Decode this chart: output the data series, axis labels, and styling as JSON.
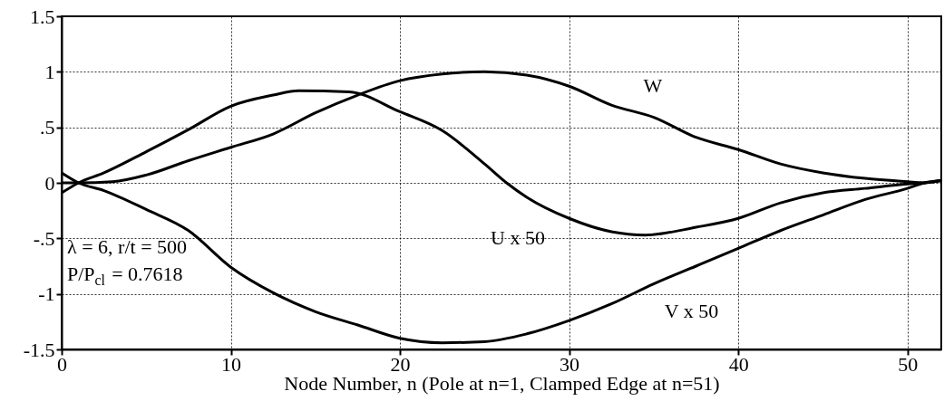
{
  "chart_data": {
    "type": "line",
    "xlabel": "Node Number, n  (Pole at n=1, Clamped Edge at n=51)",
    "xlim": [
      0,
      52
    ],
    "xticks": [
      0,
      10,
      20,
      30,
      40,
      50
    ],
    "ylim": [
      -1.5,
      1.5
    ],
    "yticks": [
      {
        "value": 1.5,
        "label": "1.5"
      },
      1,
      {
        "value": 0.5,
        "label": ".5"
      },
      0,
      {
        "value": -0.5,
        "label": "-.5"
      },
      -1,
      {
        "value": -1.5,
        "label": "-1.5"
      }
    ],
    "grid": true,
    "marker": "none",
    "line_style": "solid",
    "series": [
      {
        "name": "W",
        "color": "#000000",
        "x": [
          0,
          1,
          3,
          5,
          7.5,
          10,
          12.5,
          15,
          17.5,
          20,
          22.5,
          25,
          27.5,
          30,
          32.5,
          35,
          37.5,
          40,
          42.5,
          45,
          47.5,
          50,
          51,
          52
        ],
        "values": [
          0,
          0,
          0.01,
          0.07,
          0.2,
          0.32,
          0.44,
          0.63,
          0.79,
          0.92,
          0.98,
          1.0,
          0.97,
          0.87,
          0.7,
          0.59,
          0.41,
          0.3,
          0.17,
          0.09,
          0.04,
          0.01,
          0,
          0.02
        ]
      },
      {
        "name": "U x 50",
        "color": "#000000",
        "x": [
          0,
          1,
          2.5,
          5,
          7.5,
          10,
          12.5,
          14,
          17,
          20,
          22.5,
          25,
          26.3,
          27.5,
          30,
          32.5,
          34.5,
          37.5,
          40,
          42.5,
          45,
          47.5,
          50,
          51,
          52
        ],
        "values": [
          -0.09,
          0,
          0.09,
          0.28,
          0.48,
          0.69,
          0.79,
          0.83,
          0.82,
          0.64,
          0.47,
          0.17,
          0,
          -0.13,
          -0.32,
          -0.44,
          -0.47,
          -0.4,
          -0.32,
          -0.18,
          -0.09,
          -0.05,
          -0.01,
          0,
          0.02
        ]
      },
      {
        "name": "V x 50",
        "color": "#000000",
        "x": [
          0,
          1,
          2.5,
          5,
          7.5,
          10,
          12.5,
          15,
          17.5,
          20,
          22.5,
          25,
          27.5,
          30,
          32.5,
          35,
          37.5,
          40,
          42.5,
          45,
          47.5,
          50,
          51,
          52
        ],
        "values": [
          0.09,
          0,
          -0.07,
          -0.24,
          -0.43,
          -0.76,
          -0.99,
          -1.16,
          -1.28,
          -1.4,
          -1.44,
          -1.43,
          -1.36,
          -1.24,
          -1.09,
          -0.91,
          -0.75,
          -0.59,
          -0.43,
          -0.29,
          -0.15,
          -0.05,
          0,
          0.02
        ]
      }
    ],
    "annotations": [
      "λ = 6, r/t = 500",
      "P/P$_{cl}$ = 0.7618"
    ]
  }
}
